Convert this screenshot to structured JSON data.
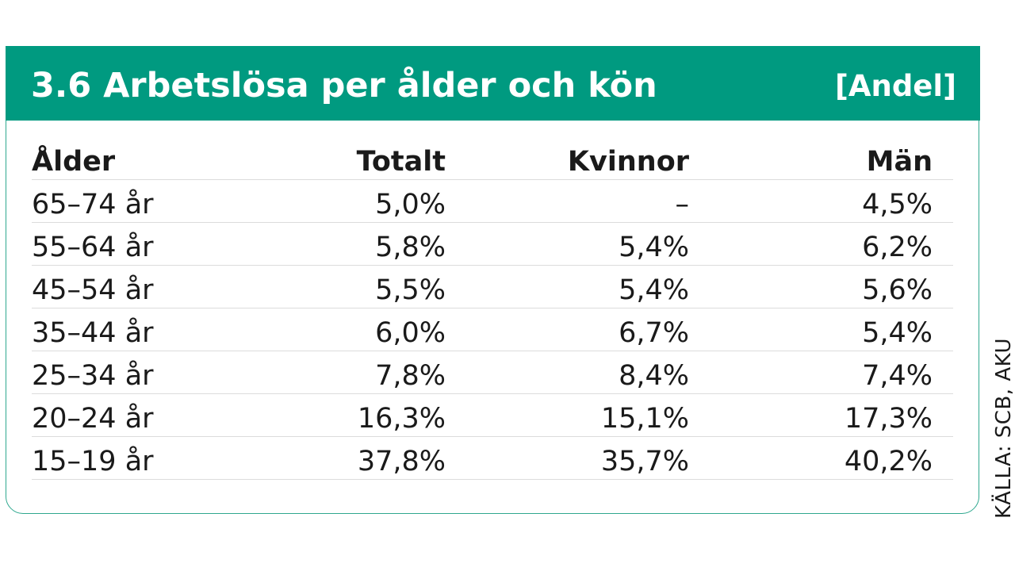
{
  "chart_data": {
    "type": "table",
    "title": "3.6  Arbetslösa per ålder och kön",
    "unit": "[Andel]",
    "columns": [
      "Ålder",
      "Totalt",
      "Kvinnor",
      "Män"
    ],
    "rows": [
      {
        "age": "65–74 år",
        "total": "5,0%",
        "women": "–",
        "men": "4,5%"
      },
      {
        "age": "55–64 år",
        "total": "5,8%",
        "women": "5,4%",
        "men": "6,2%"
      },
      {
        "age": "45–54 år",
        "total": "5,5%",
        "women": "5,4%",
        "men": "5,6%"
      },
      {
        "age": "35–44 år",
        "total": "6,0%",
        "women": "6,7%",
        "men": "5,4%"
      },
      {
        "age": "25–34 år",
        "total": "7,8%",
        "women": "8,4%",
        "men": "7,4%"
      },
      {
        "age": "20–24 år",
        "total": "16,3%",
        "women": "15,1%",
        "men": "17,3%"
      },
      {
        "age": "15–19 år",
        "total": "37,8%",
        "women": "35,7%",
        "men": "40,2%"
      }
    ],
    "source": "KÄLLA: SCB, AKU"
  },
  "colors": {
    "header_background": "#009a80",
    "card_border": "#2fa88f",
    "row_divider": "#dcdcdc"
  }
}
